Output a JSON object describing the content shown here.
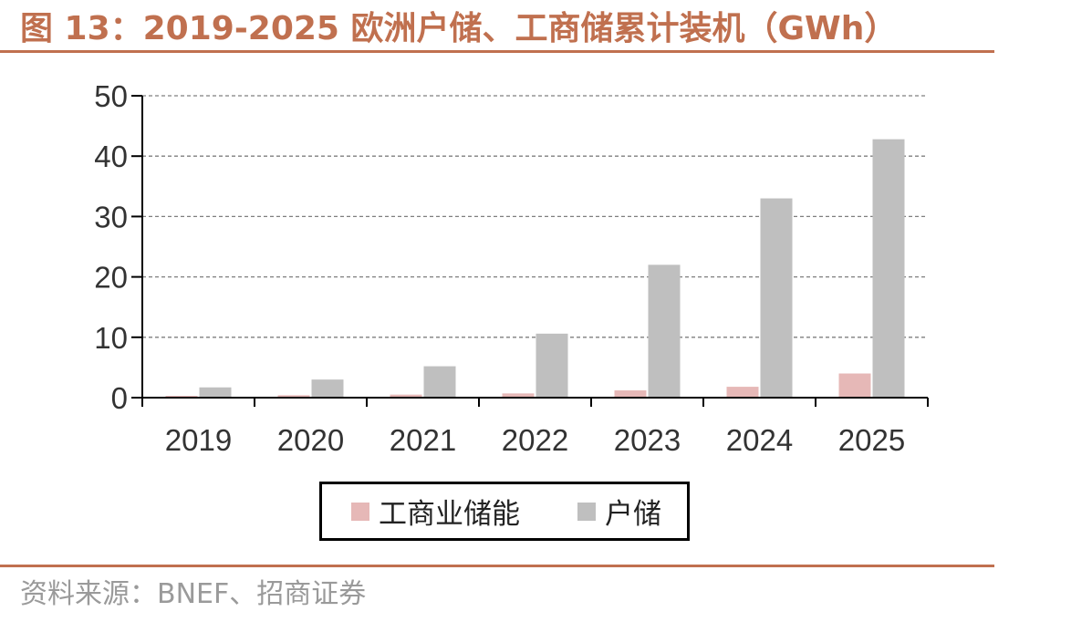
{
  "header": {
    "title": "图 13：2019-2025 欧洲户储、工商储累计装机（GWh）"
  },
  "footer": {
    "source": "资料来源：BNEF、招商证券"
  },
  "colors": {
    "accent": "#c0704f",
    "series_commercial": "#e6b8b7",
    "series_household": "#bfbfbf"
  },
  "chart_data": {
    "type": "bar",
    "title": "",
    "xlabel": "",
    "ylabel": "",
    "categories": [
      "2019",
      "2020",
      "2021",
      "2022",
      "2023",
      "2024",
      "2025"
    ],
    "ylim": [
      0,
      50
    ],
    "yticks": [
      0,
      10,
      20,
      30,
      40,
      50
    ],
    "grid": true,
    "legend_position": "bottom",
    "series": [
      {
        "name": "工商业储能",
        "values": [
          0.3,
          0.4,
          0.5,
          0.7,
          1.2,
          1.8,
          4.0
        ]
      },
      {
        "name": "户储",
        "values": [
          1.7,
          3.0,
          5.2,
          10.6,
          22.0,
          33.0,
          42.8
        ]
      }
    ]
  }
}
